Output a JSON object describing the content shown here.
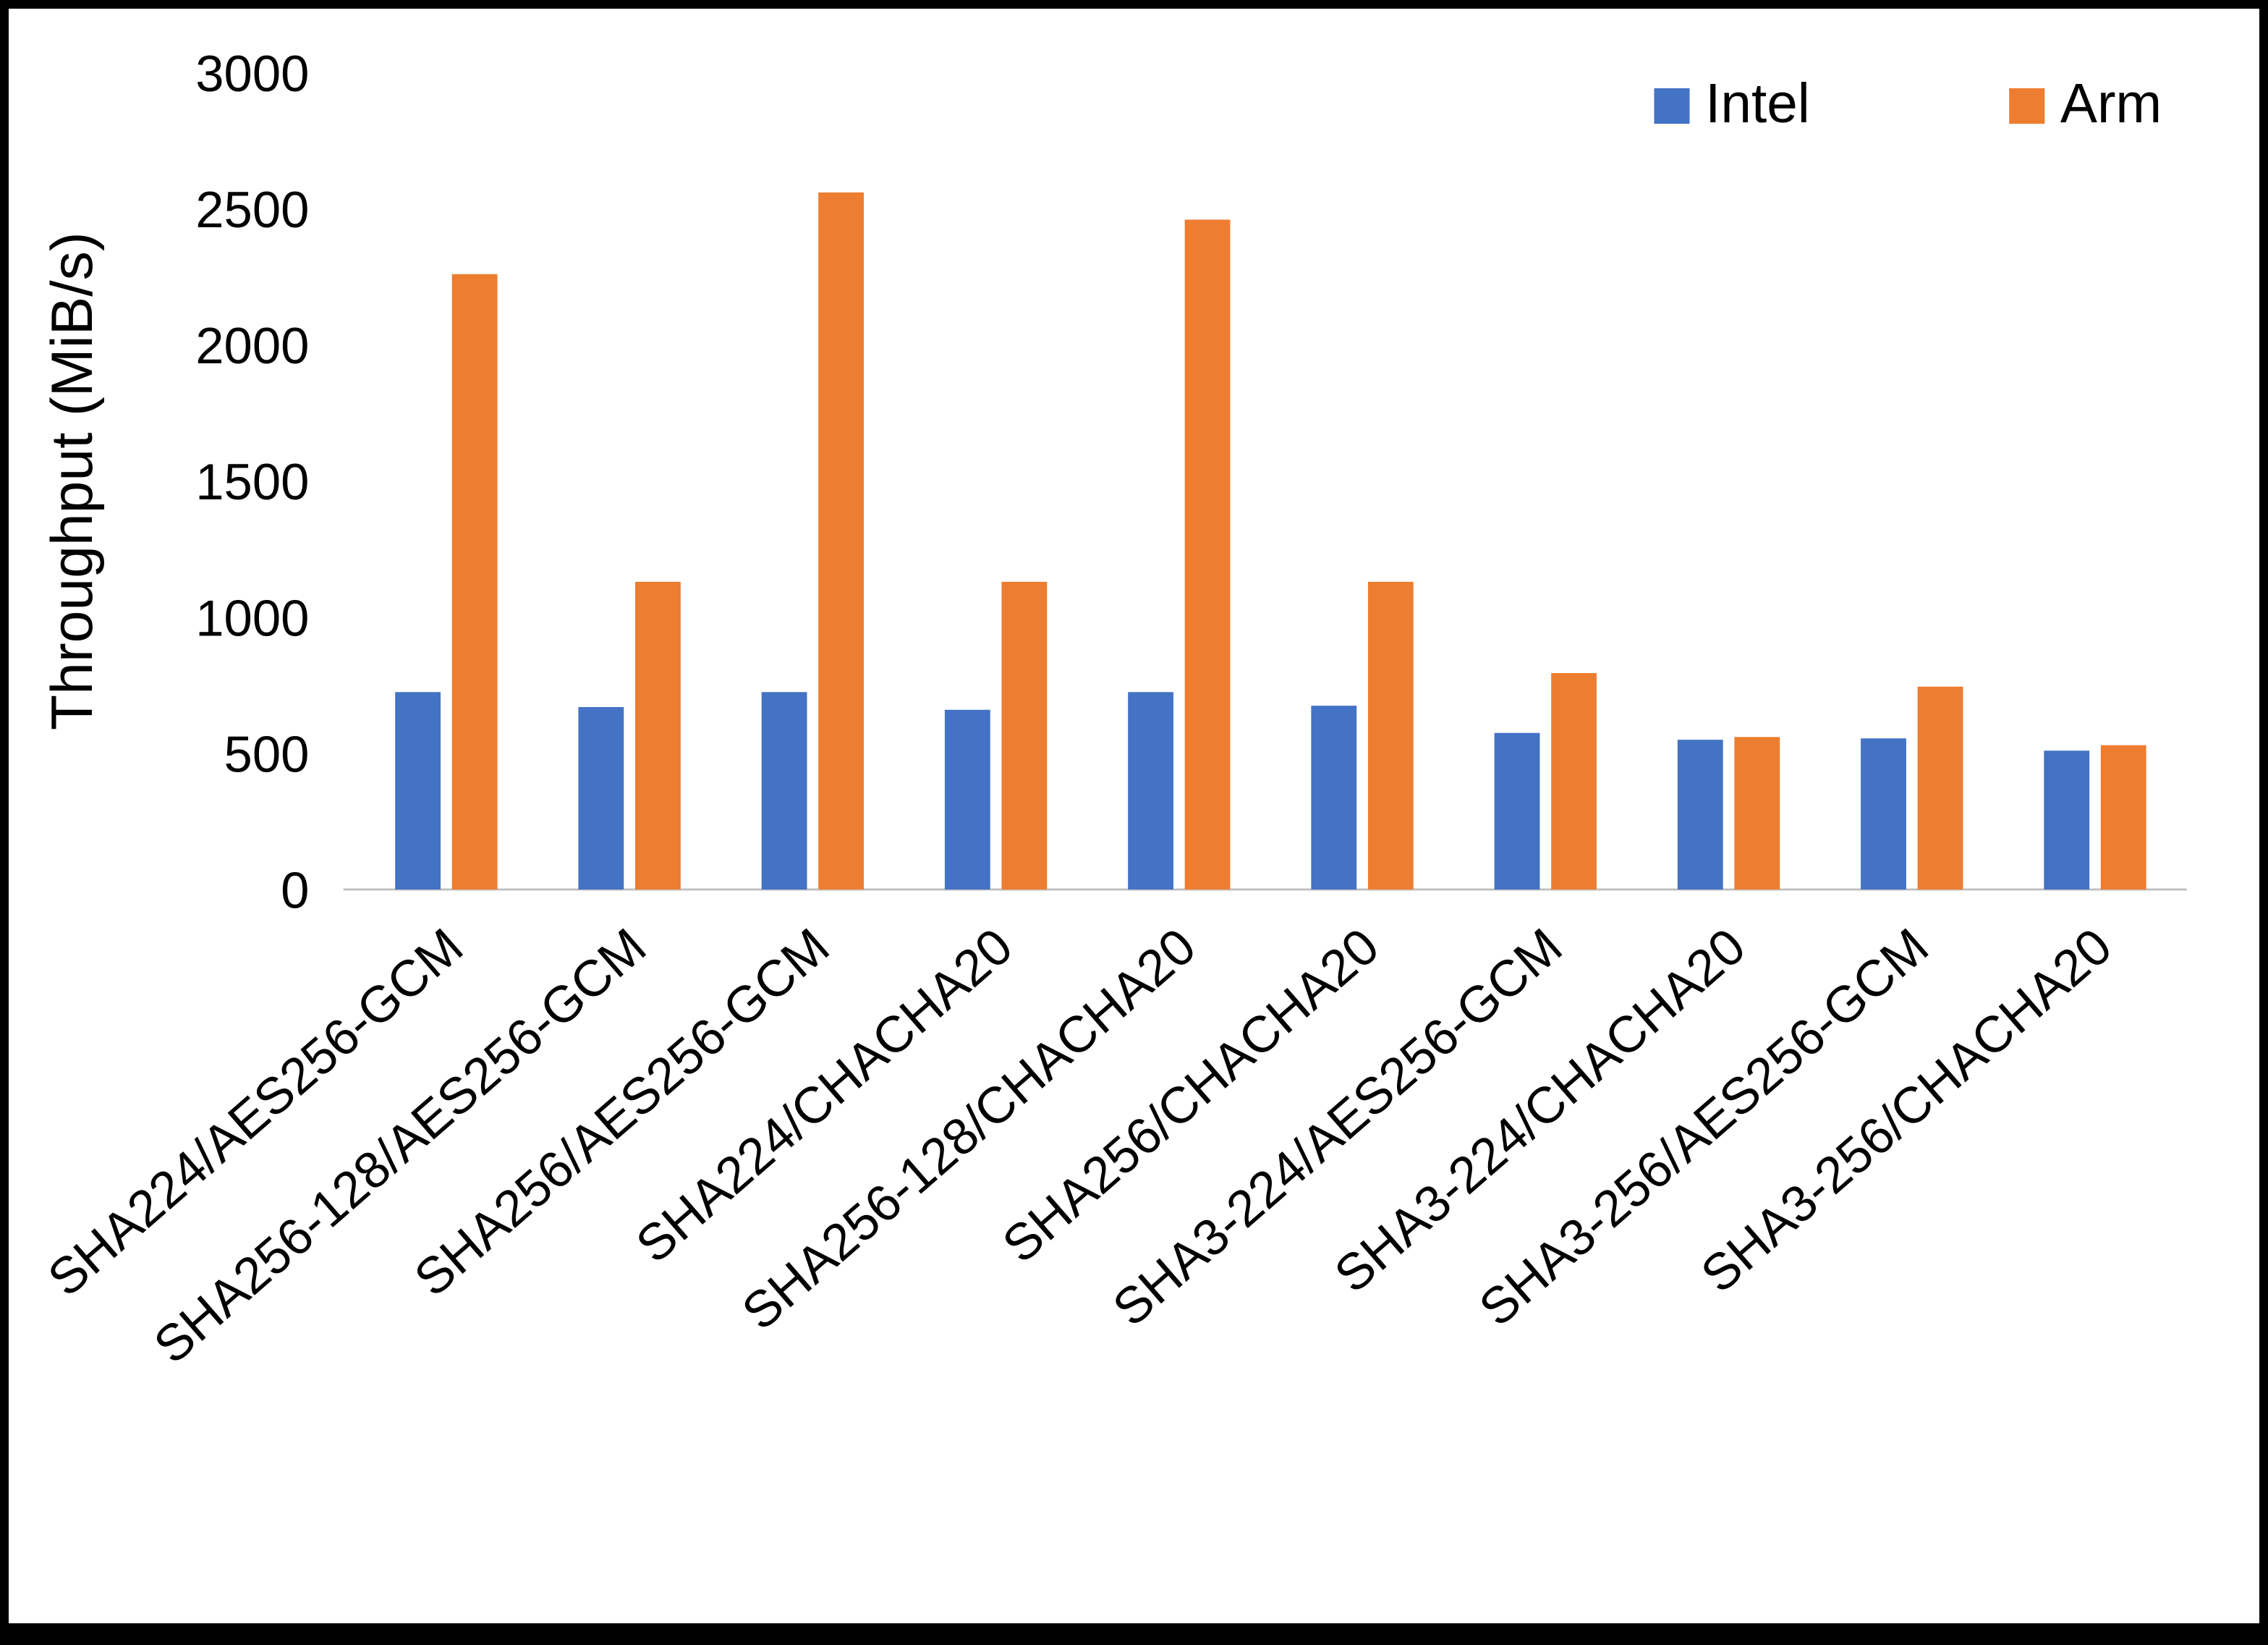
{
  "chart_data": {
    "type": "bar",
    "title": "",
    "xlabel": "",
    "ylabel": "Throughput (MiB/s)",
    "ylim": [
      0,
      3000
    ],
    "yticks": [
      0,
      500,
      1000,
      1500,
      2000,
      2500,
      3000
    ],
    "grid": false,
    "legend_position": "top-right",
    "categories": [
      "SHA224/AES256-GCM",
      "SHA256-128/AES256-GCM",
      "SHA256/AES256-GCM",
      "SHA224/CHACHA20",
      "SHA256-128/CHACHA20",
      "SHA256/CHACHA20",
      "SHA3-224/AES256-GCM",
      "SHA3-224/CHACHA20",
      "SHA3-256/AES256-GCM",
      "SHA3-256/CHACHA20"
    ],
    "series": [
      {
        "name": "Intel",
        "color": "#4472C4",
        "values": [
          725,
          670,
          725,
          660,
          725,
          675,
          575,
          550,
          555,
          510
        ]
      },
      {
        "name": "Arm",
        "color": "#ED7D31",
        "values": [
          2260,
          1130,
          2560,
          1130,
          2460,
          1130,
          795,
          560,
          745,
          530
        ]
      }
    ],
    "colors": {
      "axis_line": "#BFBFBF",
      "text": "#000000"
    }
  }
}
